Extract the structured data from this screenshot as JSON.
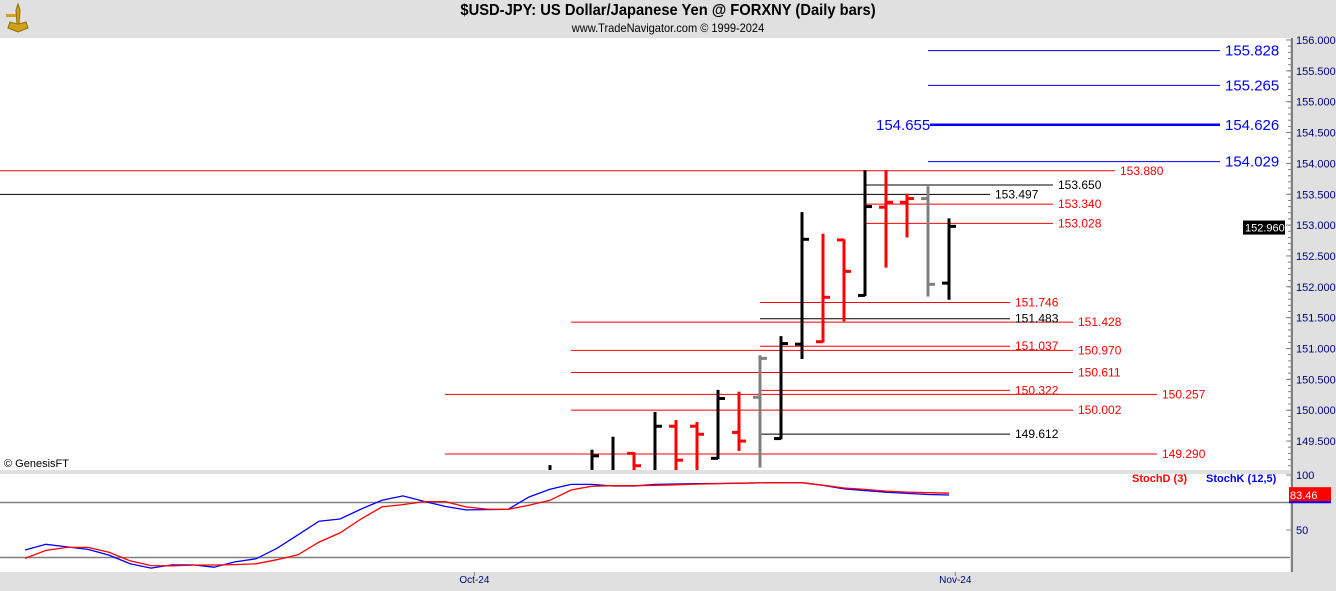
{
  "header": {
    "title": "$USD-JPY:  US Dollar/Japanese Yen @ FORXNY  (Daily bars)",
    "subtitle": "www.TradeNavigator.com © 1999-2024"
  },
  "watermark": "© GenesisFT",
  "colors": {
    "up": "#000000",
    "down": "#ff0000",
    "neutral": "#808080",
    "blue": "#0000ff",
    "red": "#ff0000"
  },
  "chart_data": [
    {
      "type": "ohlc",
      "title": "$USD-JPY:  US Dollar/Japanese Yen @ FORXNY  (Daily bars)",
      "ylim": [
        149.05,
        156.1
      ],
      "y_ticks": [
        "156.000",
        "155.500",
        "155.000",
        "154.500",
        "154.000",
        "153.500",
        "153.000",
        "152.500",
        "152.000",
        "151.500",
        "151.000",
        "150.500",
        "150.000",
        "149.500"
      ],
      "x_ticks": [
        {
          "label": "Oct-24",
          "day": 21.4
        },
        {
          "label": "Nov-24",
          "day": 44.3
        }
      ],
      "last_price": "152.960",
      "bars_start_day": 25,
      "bars": [
        {
          "high": 149.11,
          "low": null,
          "open": null,
          "close": null,
          "color": "up"
        },
        null,
        {
          "high": 149.36,
          "low": null,
          "open": null,
          "close": 149.26,
          "color": "up"
        },
        {
          "high": 149.57,
          "low": null,
          "open": null,
          "close": null,
          "color": "up"
        },
        {
          "high": 149.32,
          "low": null,
          "open": 149.3,
          "close": 149.1,
          "color": "down"
        },
        {
          "high": 149.97,
          "low": null,
          "open": null,
          "close": 149.74,
          "color": "up"
        },
        {
          "high": 149.84,
          "low": null,
          "open": 149.74,
          "close": 149.19,
          "color": "down"
        },
        {
          "high": 149.81,
          "low": null,
          "open": 149.74,
          "close": 149.61,
          "color": "down"
        },
        {
          "high": 150.33,
          "low": 149.21,
          "open": 149.22,
          "close": 150.19,
          "color": "up"
        },
        {
          "high": 150.3,
          "low": 149.34,
          "open": 149.64,
          "close": 149.5,
          "color": "down"
        },
        {
          "high": 150.89,
          "low": 149.07,
          "open": 150.21,
          "close": 150.84,
          "color": "neutral"
        },
        {
          "high": 151.2,
          "low": 149.53,
          "open": 149.54,
          "close": 151.08,
          "color": "up"
        },
        {
          "high": 153.21,
          "low": 150.83,
          "open": 151.07,
          "close": 152.77,
          "color": "up"
        },
        {
          "high": 152.86,
          "low": 151.1,
          "open": 151.11,
          "close": 151.83,
          "color": "down"
        },
        {
          "high": 152.77,
          "low": 151.44,
          "open": 152.76,
          "close": 152.25,
          "color": "down"
        },
        {
          "high": 153.89,
          "low": 151.85,
          "open": 151.86,
          "close": 153.3,
          "color": "up"
        },
        {
          "high": 153.89,
          "low": 152.31,
          "open": 153.29,
          "close": 153.37,
          "color": "down"
        },
        {
          "high": 153.51,
          "low": 152.8,
          "open": 153.37,
          "close": 153.43,
          "color": "down"
        },
        {
          "high": 153.63,
          "low": 151.84,
          "open": 153.43,
          "close": 152.04,
          "color": "neutral"
        },
        {
          "high": 153.11,
          "low": 151.79,
          "open": 152.06,
          "close": 152.98,
          "color": "up"
        }
      ],
      "levels": [
        {
          "value": 155.828,
          "label": "155.828",
          "color": "blue"
        },
        {
          "value": 155.265,
          "label": "155.265",
          "color": "blue"
        },
        {
          "value": 154.626,
          "label": "154.626",
          "color": "blue",
          "left_label": "154.655",
          "bold": true
        },
        {
          "value": 154.029,
          "label": "154.029",
          "color": "blue"
        },
        {
          "value": 153.88,
          "label": "153.880",
          "color": "red"
        },
        {
          "value": 153.65,
          "label": "153.650",
          "color": "up"
        },
        {
          "value": 153.497,
          "label": "153.497",
          "color": "up"
        },
        {
          "value": 153.34,
          "label": "153.340",
          "color": "red"
        },
        {
          "value": 153.028,
          "label": "153.028",
          "color": "red"
        },
        {
          "value": 151.746,
          "label": "151.746",
          "color": "red"
        },
        {
          "value": 151.483,
          "label": "151.483",
          "color": "up"
        },
        {
          "value": 151.428,
          "label": "151.428",
          "color": "red"
        },
        {
          "value": 151.037,
          "label": "151.037",
          "color": "red"
        },
        {
          "value": 150.97,
          "label": "150.970",
          "color": "red"
        },
        {
          "value": 150.611,
          "label": "150.611",
          "color": "red"
        },
        {
          "value": 150.322,
          "label": "150.322",
          "color": "red"
        },
        {
          "value": 150.257,
          "label": "150.257",
          "color": "red"
        },
        {
          "value": 150.002,
          "label": "150.002",
          "color": "red"
        },
        {
          "value": 149.612,
          "label": "149.612",
          "color": "up"
        },
        {
          "value": 149.29,
          "label": "149.290",
          "color": "red"
        }
      ]
    },
    {
      "type": "line",
      "ylim": [
        0,
        100
      ],
      "y_ticks": [
        "100",
        "50"
      ],
      "reference_lines": [
        75,
        25
      ],
      "last_value": "83.46",
      "series": [
        {
          "name": "StochD (3)",
          "color": "#ff0000",
          "values": [
            24.2,
            31.5,
            34.2,
            34.2,
            29.7,
            22.0,
            17.6,
            17.5,
            18.1,
            18.2,
            18.5,
            19.3,
            23.0,
            27.5,
            39.0,
            47.4,
            60.0,
            71.0,
            73.1,
            75.8,
            75.8,
            71.0,
            68.9,
            68.8,
            72.5,
            77.0,
            86.4,
            89.8,
            90.3,
            90.3,
            90.6,
            91.1,
            91.7,
            92.2,
            92.5,
            92.8,
            93.0,
            93.0,
            90.7,
            88.2,
            86.9,
            85.4,
            84.5,
            83.9,
            83.46
          ]
        },
        {
          "name": "StochK (12,5)",
          "color": "#0000ff",
          "values": [
            31.8,
            37.0,
            34.6,
            32.4,
            27.2,
            19.4,
            15.4,
            18.3,
            18.3,
            16.2,
            21.0,
            23.8,
            33.4,
            45.6,
            58.0,
            60.0,
            69.0,
            77.0,
            81.0,
            76.0,
            71.5,
            68.3,
            68.5,
            68.7,
            80.0,
            87.0,
            91.5,
            91.5,
            90.0,
            90.0,
            91.5,
            91.8,
            92.1,
            92.3,
            92.6,
            92.8,
            93.0,
            93.0,
            90.5,
            87.5,
            85.8,
            84.4,
            83.3,
            82.3,
            81.8
          ]
        }
      ]
    }
  ]
}
